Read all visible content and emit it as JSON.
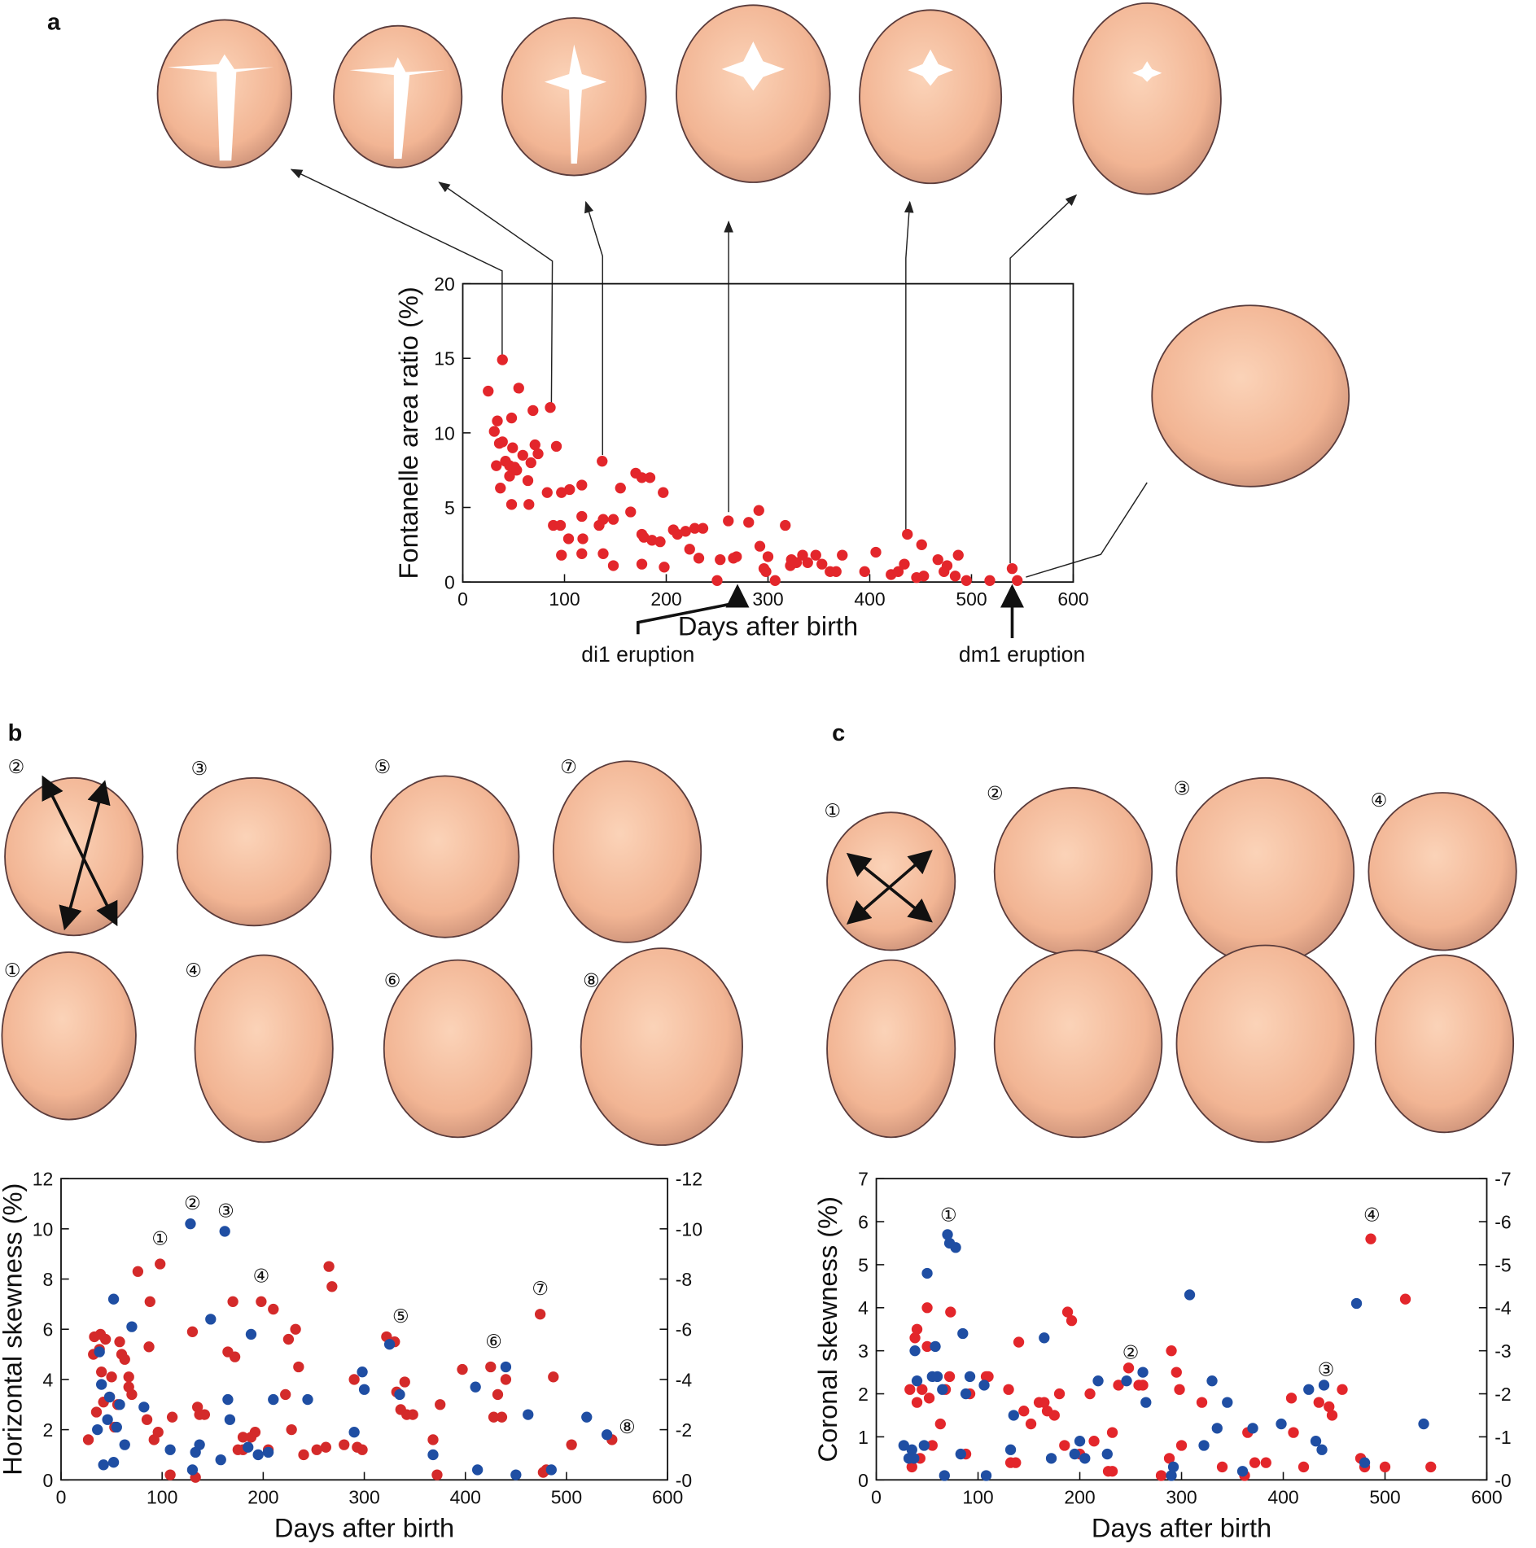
{
  "panel_letters": [
    "a",
    "b",
    "c"
  ],
  "skull_labels": {
    "b": [
      "②",
      "③",
      "⑤",
      "⑦",
      "①",
      "④",
      "⑥",
      "⑧"
    ],
    "c": [
      "①",
      "②",
      "③",
      "④"
    ]
  },
  "chart_data": [
    {
      "type": "scatter",
      "xlabel": "Days after birth",
      "ylabel": "Fontanelle area ratio (%)",
      "xlim": [
        0,
        600
      ],
      "xticks": [
        0,
        100,
        200,
        300,
        400,
        500,
        600
      ],
      "ylim": [
        0,
        20
      ],
      "yticks": [
        0,
        5,
        10,
        15,
        20
      ],
      "annotations": [
        {
          "text": "di1 eruption",
          "x": 270
        },
        {
          "text": "dm1 eruption",
          "x": 540
        }
      ],
      "series": [
        {
          "color": "#e3262b",
          "x": [
            25,
            39,
            31,
            34,
            36,
            39,
            33,
            42,
            46,
            37,
            46,
            51,
            48,
            55,
            49,
            53,
            48,
            59,
            64,
            67,
            69,
            71,
            74,
            65,
            86,
            92,
            89,
            96,
            97,
            83,
            105,
            104,
            97,
            117,
            117,
            118,
            117,
            137,
            138,
            134,
            148,
            138,
            148,
            155,
            165,
            170,
            176,
            176,
            178,
            176,
            184,
            186,
            197,
            198,
            194,
            207,
            211,
            219,
            223,
            228,
            232,
            236,
            250,
            253,
            261,
            266,
            269,
            281,
            291,
            292,
            298,
            296,
            300,
            307,
            317,
            322,
            323,
            328,
            334,
            339,
            347,
            353,
            361,
            373,
            367,
            395,
            406,
            421,
            428,
            437,
            434,
            446,
            451,
            453,
            467,
            473,
            476,
            484,
            487,
            495,
            518,
            540,
            545
          ],
          "values": [
            12.8,
            14.9,
            10.1,
            10.8,
            9.3,
            9.4,
            7.8,
            8.1,
            7.8,
            6.3,
            7.1,
            7.7,
            11.0,
            13.0,
            9.0,
            7.5,
            5.2,
            8.5,
            6.8,
            8.0,
            11.5,
            9.2,
            8.6,
            5.2,
            11.7,
            9.1,
            3.8,
            3.8,
            6.0,
            6.0,
            6.2,
            2.9,
            1.8,
            6.5,
            4.4,
            2.9,
            1.9,
            8.1,
            4.2,
            3.8,
            4.2,
            1.9,
            1.1,
            6.3,
            4.7,
            7.3,
            7.0,
            3.2,
            3.0,
            1.2,
            7.0,
            2.8,
            6.0,
            1.0,
            2.7,
            3.5,
            3.2,
            3.4,
            2.2,
            3.6,
            1.6,
            3.6,
            0.1,
            1.5,
            4.1,
            1.6,
            1.7,
            4.0,
            4.8,
            2.4,
            0.7,
            0.9,
            1.7,
            0.1,
            3.8,
            1.1,
            1.5,
            1.3,
            1.8,
            1.3,
            1.8,
            1.2,
            0.7,
            1.8,
            0.7,
            0.7,
            2.0,
            0.5,
            0.7,
            3.2,
            1.2,
            0.3,
            2.5,
            0.4,
            1.5,
            0.7,
            1.1,
            0.4,
            1.8,
            0.1,
            0.1,
            0.9,
            0.1
          ]
        }
      ]
    },
    {
      "type": "scatter",
      "xlabel": "Days after birth",
      "ylabel": "Horizontal skewness (%)",
      "xlim": [
        0,
        600
      ],
      "xticks": [
        0,
        100,
        200,
        300,
        400,
        500,
        600
      ],
      "ylim": [
        0,
        12
      ],
      "yticks": [
        0,
        2,
        4,
        6,
        8,
        10,
        12
      ],
      "y2lim": [
        0,
        -12
      ],
      "y2ticks": [
        {
          "value": 0,
          "label": "-0"
        },
        -2,
        -4,
        -6,
        -8,
        -10,
        -12
      ],
      "annotations": [
        {
          "text": "①",
          "x": 98,
          "y": 9.6
        },
        {
          "text": "②",
          "x": 130,
          "y": 11.0
        },
        {
          "text": "③",
          "x": 163,
          "y": 10.7
        },
        {
          "text": "④",
          "x": 198,
          "y": 8.1
        },
        {
          "text": "⑤",
          "x": 336,
          "y": 6.5
        },
        {
          "text": "⑥",
          "x": 428,
          "y": 5.5
        },
        {
          "text": "⑦",
          "x": 474,
          "y": 7.6
        },
        {
          "text": "⑧",
          "x": 560,
          "y": 2.1
        }
      ],
      "series": [
        {
          "color": "#d42a2a",
          "x": [
            27,
            32,
            33,
            35,
            38,
            39,
            40,
            42,
            44,
            48,
            50,
            53,
            56,
            58,
            60,
            63,
            67,
            67,
            70,
            76,
            85,
            87,
            88,
            92,
            96,
            98,
            108,
            110,
            130,
            133,
            135,
            137,
            142,
            165,
            170,
            172,
            175,
            180,
            180,
            188,
            192,
            198,
            205,
            210,
            222,
            225,
            228,
            232,
            235,
            240,
            253,
            262,
            265,
            268,
            280,
            290,
            293,
            298,
            322,
            330,
            332,
            336,
            340,
            342,
            348,
            368,
            372,
            375,
            397,
            425,
            428,
            432,
            436,
            440,
            474,
            477,
            480,
            487,
            505,
            545
          ],
          "values": [
            1.6,
            5.0,
            5.7,
            2.7,
            5.2,
            5.8,
            4.3,
            3.1,
            5.6,
            3.3,
            4.1,
            2.1,
            3.0,
            5.5,
            5.0,
            4.8,
            4.1,
            3.7,
            3.4,
            8.3,
            2.4,
            5.3,
            7.1,
            1.6,
            1.9,
            8.6,
            0.2,
            2.5,
            5.9,
            0.1,
            2.9,
            2.6,
            2.6,
            5.1,
            7.1,
            4.9,
            1.2,
            1.2,
            1.7,
            1.7,
            1.9,
            7.1,
            1.2,
            6.8,
            3.4,
            5.6,
            2.0,
            6.0,
            4.5,
            1.0,
            1.2,
            1.3,
            8.5,
            7.7,
            1.4,
            4.0,
            1.3,
            1.2,
            5.7,
            5.5,
            3.5,
            2.8,
            3.9,
            2.6,
            2.6,
            1.6,
            0.2,
            3.0,
            4.4,
            4.5,
            2.5,
            3.4,
            2.5,
            4.0,
            6.6,
            0.3,
            0.4,
            4.1,
            1.4,
            1.6
          ]
        },
        {
          "color": "#1f4ea3",
          "axis": "y2",
          "x": [
            36,
            38,
            40,
            42,
            46,
            48,
            52,
            52,
            55,
            58,
            63,
            70,
            82,
            108,
            128,
            130,
            133,
            137,
            148,
            158,
            162,
            165,
            167,
            185,
            188,
            195,
            205,
            210,
            244,
            290,
            298,
            300,
            325,
            335,
            368,
            410,
            412,
            440,
            450,
            462,
            485,
            520,
            540
          ],
          "values": [
            -2.0,
            -5.1,
            -3.8,
            -0.6,
            -2.4,
            -3.3,
            -0.7,
            -7.2,
            -2.1,
            -3.0,
            -1.4,
            -6.1,
            -2.9,
            -1.2,
            -10.2,
            -0.4,
            -1.1,
            -1.4,
            -6.4,
            -0.8,
            -9.9,
            -3.2,
            -2.4,
            -1.3,
            -5.8,
            -1.0,
            -1.1,
            -3.2,
            -3.2,
            -1.9,
            -4.3,
            -3.6,
            -5.4,
            -3.4,
            -1.0,
            -3.7,
            -0.4,
            -4.5,
            -0.2,
            -2.6,
            -0.4,
            -2.5,
            -1.8
          ]
        }
      ]
    },
    {
      "type": "scatter",
      "xlabel": "Days after birth",
      "ylabel": "Coronal skewness (%)",
      "xlim": [
        0,
        600
      ],
      "xticks": [
        0,
        100,
        200,
        300,
        400,
        500,
        600
      ],
      "ylim": [
        0,
        7
      ],
      "yticks": [
        0,
        1,
        2,
        3,
        4,
        5,
        6,
        7
      ],
      "y2lim": [
        0,
        -7
      ],
      "y2ticks": [
        {
          "value": 0,
          "label": "-0"
        },
        -1,
        -2,
        -3,
        -4,
        -5,
        -6,
        -7
      ],
      "annotations": [
        {
          "text": "①",
          "x": 71,
          "y": 6.15
        },
        {
          "text": "②",
          "x": 250,
          "y": 2.95
        },
        {
          "text": "③",
          "x": 442,
          "y": 2.55
        },
        {
          "text": "④",
          "x": 487,
          "y": 6.15
        }
      ],
      "series": [
        {
          "color": "#e3262b",
          "x": [
            33,
            35,
            38,
            40,
            40,
            43,
            45,
            50,
            50,
            52,
            55,
            63,
            68,
            72,
            73,
            88,
            92,
            108,
            110,
            130,
            132,
            137,
            140,
            145,
            152,
            160,
            165,
            168,
            175,
            180,
            185,
            188,
            192,
            200,
            210,
            214,
            228,
            232,
            232,
            238,
            248,
            258,
            262,
            280,
            288,
            290,
            295,
            298,
            300,
            320,
            340,
            362,
            365,
            372,
            383,
            408,
            410,
            420,
            435,
            445,
            448,
            458,
            476,
            480,
            486,
            500,
            520,
            545
          ],
          "values": [
            2.1,
            0.3,
            3.3,
            3.5,
            1.8,
            0.5,
            2.1,
            4.0,
            3.1,
            1.9,
            0.8,
            1.3,
            2.1,
            2.4,
            3.9,
            0.6,
            2.0,
            2.4,
            2.4,
            2.1,
            0.4,
            0.4,
            3.2,
            1.6,
            1.3,
            1.8,
            1.8,
            1.6,
            1.5,
            2.0,
            0.8,
            3.9,
            3.7,
            0.6,
            2.0,
            0.9,
            0.2,
            0.2,
            1.1,
            2.2,
            2.6,
            2.2,
            2.2,
            0.1,
            0.5,
            3.0,
            2.5,
            2.1,
            0.8,
            1.8,
            0.3,
            0.1,
            1.1,
            0.4,
            0.4,
            1.9,
            1.1,
            0.3,
            1.8,
            1.7,
            1.5,
            2.1,
            0.5,
            0.3,
            5.6,
            0.3,
            4.2,
            0.3
          ]
        },
        {
          "color": "#1f4ea3",
          "axis": "y2",
          "x": [
            27,
            32,
            35,
            37,
            38,
            40,
            47,
            50,
            55,
            58,
            60,
            65,
            67,
            70,
            72,
            78,
            83,
            85,
            88,
            92,
            108,
            106,
            132,
            135,
            165,
            172,
            195,
            200,
            205,
            218,
            227,
            246,
            262,
            265,
            290,
            292,
            308,
            322,
            330,
            335,
            345,
            360,
            370,
            398,
            425,
            432,
            438,
            440,
            472,
            480,
            538
          ],
          "values": [
            -0.8,
            -0.5,
            -0.7,
            -0.5,
            -3.0,
            -2.3,
            -0.8,
            -4.8,
            -2.4,
            -3.1,
            -2.4,
            -2.1,
            -0.1,
            -5.7,
            -5.5,
            -5.4,
            -0.6,
            -3.4,
            -2.0,
            -2.4,
            -0.1,
            -2.2,
            -0.7,
            -1.5,
            -3.3,
            -0.5,
            -0.6,
            -0.9,
            -0.5,
            -2.3,
            -0.6,
            -2.3,
            -2.5,
            -1.8,
            -0.1,
            -0.3,
            -4.3,
            -0.8,
            -2.3,
            -1.2,
            -1.8,
            -0.2,
            -1.2,
            -1.3,
            -2.1,
            -0.9,
            -0.7,
            -2.2,
            -4.1,
            -0.4,
            -1.3
          ]
        }
      ]
    }
  ]
}
